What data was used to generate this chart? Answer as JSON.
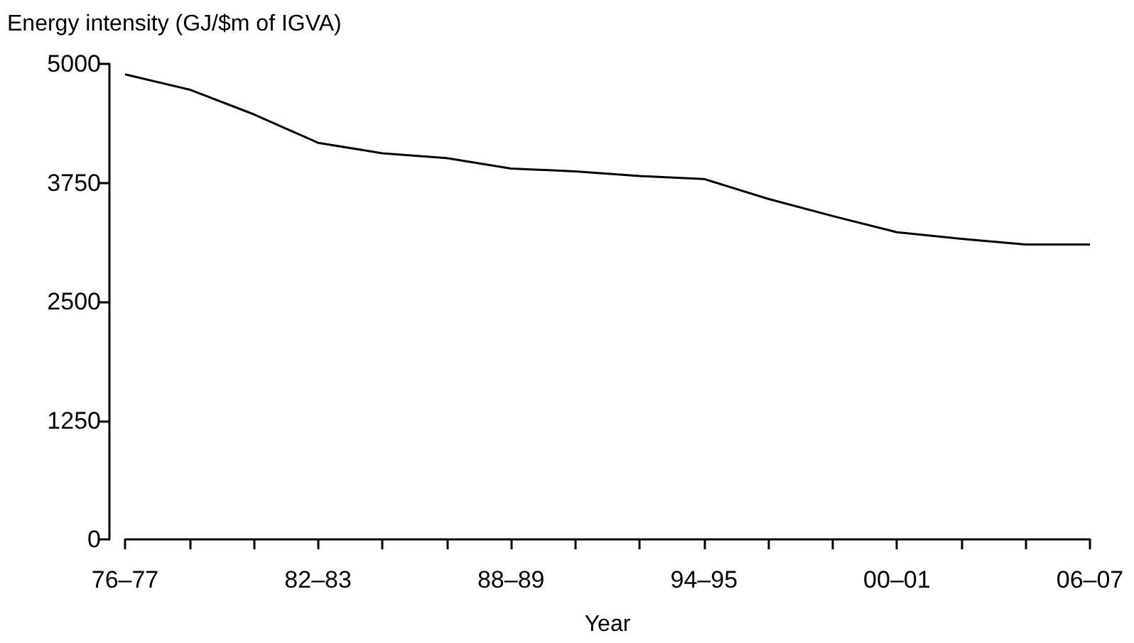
{
  "chart_data": {
    "type": "line",
    "ylabel": "Energy intensity (GJ/$m of IGVA)",
    "xlabel": "Year",
    "categories": [
      "76–77",
      null,
      null,
      "82–83",
      null,
      null,
      "88–89",
      null,
      null,
      "94–95",
      null,
      null,
      "00–01",
      null,
      null,
      "06–07"
    ],
    "series": [
      {
        "color": "#000000",
        "values": [
          4890,
          4730,
          4470,
          4170,
          4060,
          4010,
          3900,
          3870,
          3820,
          3790,
          3580,
          3400,
          3230,
          3160,
          3100,
          3100
        ]
      }
    ],
    "ylim": [
      0,
      5000
    ],
    "yticks": [
      0,
      1250,
      2500,
      3750,
      5000
    ],
    "grid": false,
    "marker": "none",
    "line_style": "solid"
  }
}
